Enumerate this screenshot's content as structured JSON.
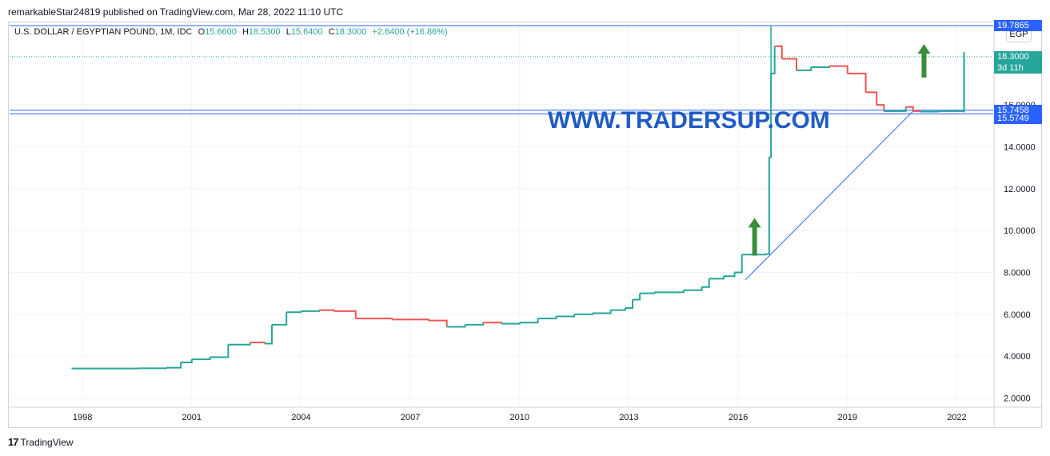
{
  "header": {
    "published_by": "remarkableStar24819 published on TradingView.com, Mar 28, 2022 11:10 UTC"
  },
  "legend": {
    "symbol": "U.S. DOLLAR / EGYPTIAN POUND, 1M, IDC",
    "open_label": "O",
    "open": "15.6600",
    "high_label": "H",
    "high": "18.5300",
    "low_label": "L",
    "low": "15.6400",
    "close_label": "C",
    "close": "18.3000",
    "change": "+2.6400 (+16.86%)"
  },
  "currency_button": "EGP",
  "watermark": "WWW.TRADERSUP.COM",
  "price_tags": {
    "resistance": "19.7865",
    "last": "18.3000",
    "countdown": "3d 11h",
    "support_high": "15.7458",
    "support_low": "15.5749"
  },
  "footer": {
    "brand": "TradingView",
    "logo_mark": "17"
  },
  "colors": {
    "up": "#26a69a",
    "down": "#ef5350",
    "line": "#2962ff",
    "arrow": "#388e3c",
    "watermark": "#1f5bc4"
  },
  "chart_data": {
    "type": "line",
    "title": "",
    "xlabel": "",
    "ylabel": "",
    "xlim": [
      1996.0,
      2023.0
    ],
    "ylim": [
      1.6,
      19.9
    ],
    "x_ticks": [
      "1998",
      "2001",
      "2004",
      "2007",
      "2010",
      "2013",
      "2016",
      "2019",
      "2022"
    ],
    "y_ticks": [
      "2.0000",
      "4.0000",
      "6.0000",
      "8.0000",
      "10.0000",
      "12.0000",
      "14.0000",
      "16.0000",
      "18.0000"
    ],
    "horizontal_lines": [
      19.7865,
      15.7458,
      15.5749
    ],
    "last_price_line": 18.3,
    "trendline": [
      [
        2016.2,
        7.65
      ],
      [
        2020.8,
        15.7
      ]
    ],
    "annotations": [
      {
        "type": "up-arrow",
        "x": 2016.45,
        "y_from": 8.8,
        "y_to": 10.6
      },
      {
        "type": "up-arrow",
        "x": 2021.1,
        "y_from": 17.3,
        "y_to": 18.9
      }
    ],
    "series": [
      {
        "x": [
          1997.7,
          1998.5,
          1999.5,
          2000.3,
          2000.7,
          2001.0,
          2001.5,
          2002.0,
          2002.6,
          2003.0,
          2003.2,
          2003.6,
          2004.0,
          2004.5,
          2004.9,
          2005.5,
          2006.5,
          2007.5,
          2008.0,
          2008.5,
          2009.0,
          2009.5,
          2010.0,
          2010.5,
          2011.0,
          2011.5,
          2012.0,
          2012.5,
          2012.9,
          2013.1,
          2013.3,
          2013.7,
          2014.5,
          2015.0,
          2015.2,
          2015.6,
          2015.9,
          2016.1,
          2016.5,
          2016.75,
          2016.85,
          2016.9,
          2017.0,
          2017.2,
          2017.6,
          2018.0,
          2018.5,
          2019.0,
          2019.5,
          2019.8,
          2020.0,
          2020.3,
          2020.6,
          2020.8,
          2021.0,
          2021.5,
          2022.1,
          2022.2
        ],
        "y": [
          3.41,
          3.41,
          3.42,
          3.45,
          3.7,
          3.85,
          3.95,
          4.55,
          4.65,
          4.6,
          5.5,
          6.1,
          6.15,
          6.2,
          6.15,
          5.8,
          5.75,
          5.7,
          5.4,
          5.5,
          5.6,
          5.55,
          5.6,
          5.8,
          5.9,
          6.0,
          6.05,
          6.2,
          6.3,
          6.7,
          7.0,
          7.05,
          7.15,
          7.3,
          7.7,
          7.82,
          8.0,
          8.85,
          8.85,
          8.88,
          13.5,
          17.5,
          18.8,
          18.2,
          17.65,
          17.8,
          17.85,
          17.5,
          16.6,
          16.0,
          15.7,
          15.7,
          15.9,
          15.7,
          15.68,
          15.7,
          15.7,
          18.3
        ]
      }
    ]
  }
}
